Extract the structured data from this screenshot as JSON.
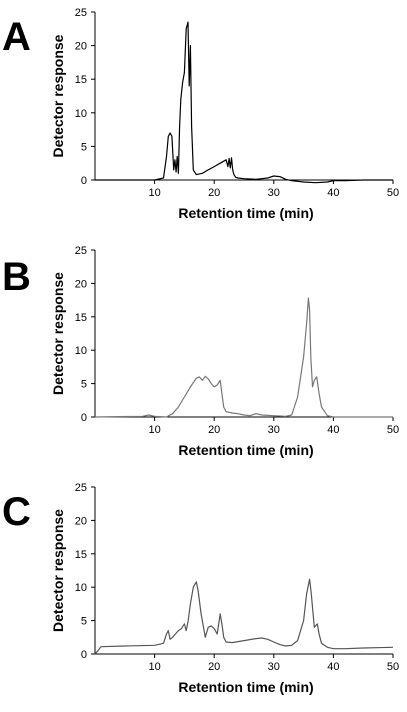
{
  "chart_data": [
    {
      "type": "line",
      "panel_label": "A",
      "xlabel": "Retention time (min)",
      "ylabel": "Detector response",
      "xlim": [
        0,
        50
      ],
      "ylim": [
        0,
        25
      ],
      "xticks": [
        10,
        20,
        30,
        40,
        50
      ],
      "yticks": [
        0,
        5,
        10,
        15,
        20,
        25
      ],
      "grid": false,
      "series": [
        {
          "color": "#000000",
          "x": [
            0,
            10,
            11.5,
            12,
            12.3,
            12.6,
            12.9,
            13.2,
            13.4,
            13.6,
            13.8,
            14.0,
            14.2,
            14.4,
            14.7,
            15.0,
            15.3,
            15.6,
            15.8,
            16.0,
            16.2,
            16.5,
            17,
            18,
            19,
            20,
            21,
            22,
            22.3,
            22.5,
            22.7,
            22.9,
            23.1,
            23.3,
            23.6,
            24,
            25,
            27,
            29,
            30,
            31,
            32,
            33,
            35,
            37,
            39,
            40,
            42,
            45,
            50
          ],
          "y": [
            0,
            0,
            0.3,
            3.5,
            6.5,
            7.0,
            6.5,
            1.5,
            3.0,
            1.2,
            3.5,
            1.0,
            8.0,
            12.0,
            14.5,
            16.0,
            22.5,
            23.5,
            14.0,
            20.0,
            8.0,
            1.5,
            0.8,
            1.0,
            1.5,
            2.0,
            2.5,
            3.0,
            2.0,
            3.2,
            1.8,
            3.3,
            1.5,
            0.8,
            0.4,
            0.3,
            0.2,
            0.1,
            0.3,
            0.6,
            0.5,
            0.1,
            -0.1,
            -0.3,
            -0.4,
            -0.3,
            -0.1,
            -0.1,
            0,
            0
          ]
        }
      ]
    },
    {
      "type": "line",
      "panel_label": "B",
      "xlabel": "Retention time (min)",
      "ylabel": "Detector response",
      "xlim": [
        0,
        50
      ],
      "ylim": [
        0,
        25
      ],
      "xticks": [
        10,
        20,
        30,
        40,
        50
      ],
      "yticks": [
        0,
        5,
        10,
        15,
        20,
        25
      ],
      "grid": false,
      "series": [
        {
          "color": "#777777",
          "x": [
            0,
            8,
            9,
            10,
            12,
            13,
            14,
            15,
            16,
            17,
            17.5,
            18,
            18.5,
            19,
            19.5,
            20,
            20.5,
            21,
            21.3,
            21.6,
            22,
            23,
            24,
            25,
            26,
            27,
            28,
            30,
            32,
            33,
            34,
            35,
            35.5,
            35.8,
            36.0,
            36.2,
            36.5,
            36.8,
            37.2,
            37.6,
            38,
            39,
            40,
            42,
            45,
            50
          ],
          "y": [
            0,
            0.1,
            0.3,
            0.1,
            0,
            0.5,
            1.5,
            3.0,
            4.5,
            5.8,
            6.0,
            5.5,
            6.1,
            5.7,
            5.0,
            4.5,
            4.8,
            5.5,
            3.5,
            1.5,
            0.8,
            0.6,
            0.5,
            0.3,
            0.2,
            0.5,
            0.3,
            0.2,
            0.1,
            0.3,
            3.0,
            9.0,
            14.0,
            17.8,
            16.0,
            9.0,
            4.5,
            5.5,
            6.0,
            3.5,
            1.5,
            0.2,
            0,
            0,
            0,
            0
          ]
        }
      ]
    },
    {
      "type": "line",
      "panel_label": "C",
      "xlabel": "Retention time (min)",
      "ylabel": "Detector response",
      "xlim": [
        0,
        50
      ],
      "ylim": [
        0,
        25
      ],
      "xticks": [
        10,
        20,
        30,
        40,
        50
      ],
      "yticks": [
        0,
        5,
        10,
        15,
        20,
        25
      ],
      "grid": false,
      "series": [
        {
          "color": "#555555",
          "x": [
            0,
            0.5,
            1,
            5,
            10,
            11.5,
            12,
            12.3,
            12.6,
            13,
            14,
            14.5,
            15,
            15.3,
            15.6,
            16,
            16.5,
            17,
            17.3,
            17.8,
            18.5,
            19,
            19.5,
            20,
            20.5,
            21,
            21.3,
            21.6,
            22,
            23,
            25,
            27,
            28,
            29,
            30,
            31,
            32,
            33,
            34,
            35,
            35.5,
            36.0,
            36.3,
            36.8,
            37.3,
            37.6,
            38,
            39,
            40,
            42,
            45,
            50
          ],
          "y": [
            0,
            0.5,
            1.1,
            1.2,
            1.3,
            1.6,
            3.0,
            3.5,
            2.2,
            2.5,
            3.5,
            3.8,
            4.5,
            3.5,
            4.8,
            7.5,
            10.0,
            10.8,
            9.5,
            6.0,
            2.5,
            4.0,
            4.2,
            3.8,
            3.0,
            6.0,
            4.5,
            2.5,
            1.8,
            1.7,
            2.0,
            2.3,
            2.4,
            2.2,
            1.8,
            1.4,
            1.2,
            1.3,
            2.0,
            5.0,
            9.0,
            11.2,
            9.0,
            4.0,
            4.5,
            3.0,
            1.6,
            1.0,
            0.8,
            0.8,
            0.9,
            1.0
          ]
        }
      ]
    }
  ]
}
